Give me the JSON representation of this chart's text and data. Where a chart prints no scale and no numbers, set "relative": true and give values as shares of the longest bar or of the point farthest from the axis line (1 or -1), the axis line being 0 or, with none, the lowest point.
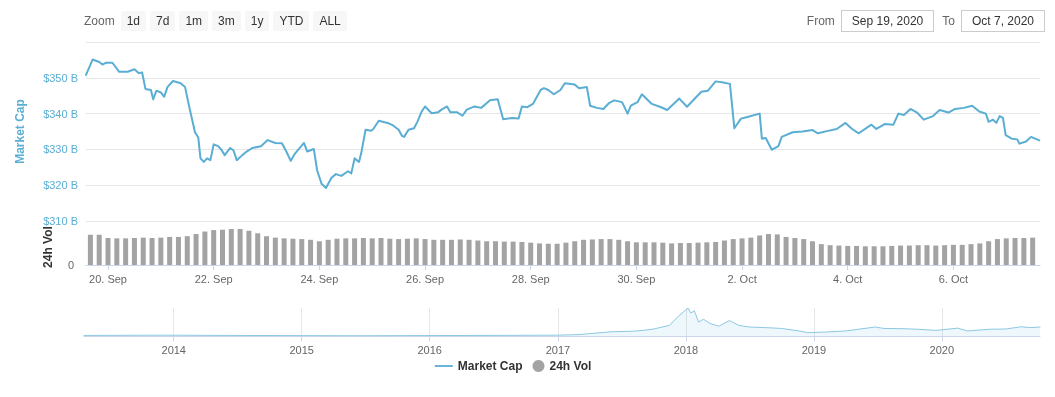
{
  "chart_data": [
    {
      "type": "line",
      "ylabel": "Market Cap",
      "annotations": [
        "Zoom",
        "1d",
        "7d",
        "1m",
        "3m",
        "1y",
        "YTD",
        "ALL",
        "From",
        "Sep 19, 2020",
        "To",
        "Oct 7, 2020"
      ],
      "x": [
        "2020-09-19T14:00",
        "2020-09-19T17:00",
        "2020-09-19T20:00",
        "2020-09-19T21:30",
        "2020-09-19T23:00",
        "2020-09-20T02:00",
        "2020-09-20T05:00",
        "2020-09-20T09:00",
        "2020-09-20T12:00",
        "2020-09-20T14:00",
        "2020-09-20T15:30",
        "2020-09-20T17:00",
        "2020-09-20T19:30",
        "2020-09-20T20:30",
        "2020-09-20T22:00",
        "2020-09-21T00:00",
        "2020-09-21T01:30",
        "2020-09-21T03:00",
        "2020-09-21T05:30",
        "2020-09-21T09:00",
        "2020-09-21T11:00",
        "2020-09-21T13:00",
        "2020-09-21T15:30",
        "2020-09-21T17:00",
        "2020-09-21T18:00",
        "2020-09-21T19:30",
        "2020-09-21T21:00",
        "2020-09-21T22:30",
        "2020-09-22T00:00",
        "2020-09-22T02:00",
        "2020-09-22T03:30",
        "2020-09-22T05:00",
        "2020-09-22T07:30",
        "2020-09-22T09:00",
        "2020-09-22T10:30",
        "2020-09-22T13:00",
        "2020-09-22T15:00",
        "2020-09-22T17:30",
        "2020-09-22T21:30",
        "2020-09-23T00:30",
        "2020-09-23T04:00",
        "2020-09-23T07:00",
        "2020-09-23T09:00",
        "2020-09-23T11:00",
        "2020-09-23T13:00",
        "2020-09-23T17:00",
        "2020-09-23T18:30",
        "2020-09-23T21:30",
        "2020-09-23T23:00",
        "2020-09-24T01:00",
        "2020-09-24T03:00",
        "2020-09-24T05:30",
        "2020-09-24T07:30",
        "2020-09-24T10:00",
        "2020-09-24T13:00",
        "2020-09-24T14:30",
        "2020-09-24T16:00",
        "2020-09-24T18:00",
        "2020-09-24T19:00",
        "2020-09-24T21:00",
        "2020-09-24T23:30",
        "2020-09-25T00:30",
        "2020-09-25T03:00",
        "2020-09-25T07:00",
        "2020-09-25T09:30",
        "2020-09-25T12:00",
        "2020-09-25T13:30",
        "2020-09-25T14:30",
        "2020-09-25T16:30",
        "2020-09-25T19:00",
        "2020-09-25T20:30",
        "2020-09-25T22:30",
        "2020-09-26T00:00",
        "2020-09-26T03:00",
        "2020-09-26T06:00",
        "2020-09-26T07:30",
        "2020-09-26T10:00",
        "2020-09-26T11:30",
        "2020-09-26T14:30",
        "2020-09-26T17:00",
        "2020-09-26T19:00",
        "2020-09-26T22:30",
        "2020-09-27T01:30",
        "2020-09-27T05:30",
        "2020-09-27T09:00",
        "2020-09-27T11:30",
        "2020-09-27T15:30",
        "2020-09-27T18:30",
        "2020-09-27T20:00",
        "2020-09-27T22:30",
        "2020-09-28T01:00",
        "2020-09-28T04:30",
        "2020-09-28T06:00",
        "2020-09-28T08:00",
        "2020-09-28T10:30",
        "2020-09-28T13:30",
        "2020-09-28T15:30",
        "2020-09-28T20:00",
        "2020-09-28T22:00",
        "2020-09-29T01:30",
        "2020-09-29T03:00",
        "2020-09-29T06:00",
        "2020-09-29T09:00",
        "2020-09-29T11:30",
        "2020-09-29T14:00",
        "2020-09-29T17:30",
        "2020-09-29T20:00",
        "2020-09-29T21:30",
        "2020-09-30T00:30",
        "2020-09-30T02:30",
        "2020-09-30T07:00",
        "2020-09-30T11:30",
        "2020-09-30T14:00",
        "2020-09-30T19:30",
        "2020-09-30T23:00",
        "2020-10-01T05:30",
        "2020-10-01T08:30",
        "2020-10-01T12:00",
        "2020-10-01T15:30",
        "2020-10-01T18:30",
        "2020-10-01T20:30",
        "2020-10-01T23:30",
        "2020-10-02T02:00",
        "2020-10-02T08:00",
        "2020-10-02T09:00",
        "2020-10-02T10:45",
        "2020-10-02T13:30",
        "2020-10-02T16:30",
        "2020-10-02T18:00",
        "2020-10-02T23:00",
        "2020-10-03T03:30",
        "2020-10-03T08:00",
        "2020-10-03T10:30",
        "2020-10-03T14:30",
        "2020-10-03T19:00",
        "2020-10-03T23:00",
        "2020-10-04T02:00",
        "2020-10-04T05:00",
        "2020-10-04T10:45",
        "2020-10-04T13:00",
        "2020-10-04T17:00",
        "2020-10-04T20:45",
        "2020-10-04T23:00",
        "2020-10-05T01:30",
        "2020-10-05T04:30",
        "2020-10-05T07:30",
        "2020-10-05T10:30",
        "2020-10-05T14:45",
        "2020-10-05T17:45",
        "2020-10-05T21:45",
        "2020-10-06T00:45",
        "2020-10-06T04:45",
        "2020-10-06T08:30",
        "2020-10-06T11:45",
        "2020-10-06T14:45",
        "2020-10-06T16:00",
        "2020-10-06T18:00",
        "2020-10-06T19:30",
        "2020-10-06T21:00",
        "2020-10-06T22:30",
        "2020-10-06T23:45",
        "2020-10-07T02:30",
        "2020-10-07T05:00",
        "2020-10-07T06:00",
        "2020-10-07T09:00",
        "2020-10-07T11:15",
        "2020-10-07T15:00"
      ],
      "series": [
        {
          "name": "Market Cap",
          "color": "#5aaed4",
          "values": [
            350.8,
            355.1,
            354.4,
            353.7,
            354.2,
            354.2,
            351.7,
            351.7,
            352.4,
            351.3,
            351.5,
            346.9,
            346.6,
            344.0,
            346.4,
            345.9,
            344.7,
            347.4,
            349.1,
            348.5,
            347.4,
            341.6,
            334.8,
            333.3,
            327.5,
            326.5,
            327.5,
            327.0,
            331.4,
            330.9,
            329.9,
            328.4,
            330.4,
            329.7,
            327.0,
            328.4,
            329.4,
            330.4,
            330.9,
            332.6,
            331.8,
            331.7,
            329.4,
            326.8,
            328.9,
            331.8,
            329.4,
            330.1,
            324.1,
            320.4,
            319.2,
            322.1,
            323.1,
            322.6,
            323.9,
            323.3,
            327.5,
            326.5,
            328.9,
            335.5,
            335.2,
            335.7,
            338.0,
            337.4,
            336.7,
            335.5,
            333.8,
            333.5,
            335.5,
            335.9,
            337.7,
            340.6,
            342.0,
            340.1,
            340.4,
            341.1,
            342.0,
            340.4,
            340.4,
            339.4,
            341.1,
            342.0,
            341.6,
            343.7,
            344.0,
            338.4,
            338.8,
            338.6,
            342.0,
            341.8,
            342.7,
            346.6,
            347.1,
            346.6,
            345.4,
            346.6,
            348.5,
            348.1,
            347.1,
            347.4,
            342.2,
            341.6,
            341.3,
            342.9,
            343.7,
            343.2,
            340.0,
            342.2,
            343.2,
            345.4,
            342.7,
            341.7,
            341.0,
            344.2,
            341.9,
            346.1,
            346.4,
            349.0,
            348.7,
            348.3,
            335.9,
            338.6,
            339.0,
            340.0,
            333.0,
            333.2,
            329.9,
            330.9,
            333.5,
            334.8,
            335.0,
            335.4,
            334.5,
            335.1,
            335.7,
            337.4,
            335.7,
            334.5,
            336.9,
            335.7,
            337.1,
            336.9,
            340.0,
            339.6,
            341.3,
            340.3,
            338.3,
            339.3,
            341.0,
            340.3,
            341.3,
            341.6,
            342.2,
            340.6,
            340.0,
            337.7,
            338.3,
            337.4,
            339.3,
            338.8,
            334.0,
            333.0,
            332.8,
            331.6,
            332.2,
            333.5,
            332.5
          ]
        }
      ],
      "xlim": [
        "2020-09-19T14:00",
        "2020-10-07T15:20"
      ],
      "ylim": [
        310,
        360
      ],
      "yticks": [
        {
          "value": 310,
          "label": "$310 B"
        },
        {
          "value": 320,
          "label": "$320 B"
        },
        {
          "value": 330,
          "label": "$330 B"
        },
        {
          "value": 340,
          "label": "$340 B"
        },
        {
          "value": 350,
          "label": "$350 B"
        },
        {
          "value": 360,
          "label": null
        }
      ],
      "grid": "y",
      "legend": "bottom",
      "tick_labels": "y",
      "marker": "none",
      "line_style": "solid"
    },
    {
      "type": "bar",
      "relative": true,
      "ylabel": "24h Vol",
      "annotations": [
        "0"
      ],
      "x": [
        "2020-09-19T16:00",
        "2020-09-19T20:00",
        "2020-09-20T00:00",
        "2020-09-20T04:00",
        "2020-09-20T08:00",
        "2020-09-20T12:00",
        "2020-09-20T16:00",
        "2020-09-20T20:00",
        "2020-09-21T00:00",
        "2020-09-21T04:00",
        "2020-09-21T08:00",
        "2020-09-21T12:00",
        "2020-09-21T16:00",
        "2020-09-21T20:00",
        "2020-09-22T00:00",
        "2020-09-22T04:00",
        "2020-09-22T08:00",
        "2020-09-22T12:00",
        "2020-09-22T16:00",
        "2020-09-22T20:00",
        "2020-09-23T00:00",
        "2020-09-23T04:00",
        "2020-09-23T08:00",
        "2020-09-23T12:00",
        "2020-09-23T16:00",
        "2020-09-23T20:00",
        "2020-09-24T00:00",
        "2020-09-24T04:00",
        "2020-09-24T08:00",
        "2020-09-24T12:00",
        "2020-09-24T16:00",
        "2020-09-24T20:00",
        "2020-09-25T00:00",
        "2020-09-25T04:00",
        "2020-09-25T08:00",
        "2020-09-25T12:00",
        "2020-09-25T16:00",
        "2020-09-25T20:00",
        "2020-09-26T00:00",
        "2020-09-26T04:00",
        "2020-09-26T08:00",
        "2020-09-26T12:00",
        "2020-09-26T16:00",
        "2020-09-26T20:00",
        "2020-09-27T00:00",
        "2020-09-27T04:00",
        "2020-09-27T08:00",
        "2020-09-27T12:00",
        "2020-09-27T16:00",
        "2020-09-27T20:00",
        "2020-09-28T00:00",
        "2020-09-28T04:00",
        "2020-09-28T08:00",
        "2020-09-28T12:00",
        "2020-09-28T16:00",
        "2020-09-28T20:00",
        "2020-09-29T00:00",
        "2020-09-29T04:00",
        "2020-09-29T08:00",
        "2020-09-29T12:00",
        "2020-09-29T16:00",
        "2020-09-29T20:00",
        "2020-09-30T00:00",
        "2020-09-30T04:00",
        "2020-09-30T08:00",
        "2020-09-30T12:00",
        "2020-09-30T16:00",
        "2020-09-30T20:00",
        "2020-10-01T00:00",
        "2020-10-01T04:00",
        "2020-10-01T08:00",
        "2020-10-01T12:00",
        "2020-10-01T16:00",
        "2020-10-01T20:00",
        "2020-10-02T00:00",
        "2020-10-02T04:00",
        "2020-10-02T08:00",
        "2020-10-02T12:00",
        "2020-10-02T16:00",
        "2020-10-02T20:00",
        "2020-10-03T00:00",
        "2020-10-03T04:00",
        "2020-10-03T08:00",
        "2020-10-03T12:00",
        "2020-10-03T16:00",
        "2020-10-03T20:00",
        "2020-10-04T00:00",
        "2020-10-04T04:00",
        "2020-10-04T08:00",
        "2020-10-04T12:00",
        "2020-10-04T16:00",
        "2020-10-04T20:00",
        "2020-10-05T00:00",
        "2020-10-05T04:00",
        "2020-10-05T08:00",
        "2020-10-05T12:00",
        "2020-10-05T16:00",
        "2020-10-05T20:00",
        "2020-10-06T00:00",
        "2020-10-06T04:00",
        "2020-10-06T08:00",
        "2020-10-06T12:00",
        "2020-10-06T16:00",
        "2020-10-06T20:00",
        "2020-10-07T00:00",
        "2020-10-07T04:00",
        "2020-10-07T08:00",
        "2020-10-07T12:00"
      ],
      "series": [
        {
          "name": "24h Vol",
          "color": "#a3a3a3",
          "values": [
            0.84,
            0.84,
            0.75,
            0.74,
            0.74,
            0.75,
            0.76,
            0.75,
            0.76,
            0.78,
            0.78,
            0.8,
            0.86,
            0.93,
            0.97,
            0.98,
            1.0,
            1.0,
            0.95,
            0.88,
            0.8,
            0.76,
            0.74,
            0.73,
            0.72,
            0.7,
            0.66,
            0.7,
            0.73,
            0.74,
            0.74,
            0.75,
            0.74,
            0.75,
            0.73,
            0.72,
            0.73,
            0.74,
            0.72,
            0.7,
            0.7,
            0.7,
            0.71,
            0.7,
            0.68,
            0.66,
            0.66,
            0.65,
            0.65,
            0.64,
            0.62,
            0.6,
            0.59,
            0.59,
            0.62,
            0.66,
            0.7,
            0.71,
            0.72,
            0.72,
            0.7,
            0.66,
            0.63,
            0.63,
            0.63,
            0.62,
            0.6,
            0.61,
            0.61,
            0.62,
            0.63,
            0.64,
            0.68,
            0.72,
            0.74,
            0.76,
            0.82,
            0.86,
            0.85,
            0.78,
            0.75,
            0.72,
            0.66,
            0.58,
            0.55,
            0.54,
            0.53,
            0.53,
            0.52,
            0.52,
            0.52,
            0.53,
            0.54,
            0.54,
            0.55,
            0.55,
            0.54,
            0.55,
            0.56,
            0.56,
            0.58,
            0.6,
            0.66,
            0.72,
            0.74,
            0.75,
            0.75,
            0.76
          ]
        }
      ],
      "xlim": [
        "2020-09-19T14:00",
        "2020-10-07T15:20"
      ],
      "xticks": [
        {
          "value": "2020-09-20",
          "label": "20. Sep"
        },
        {
          "value": "2020-09-22",
          "label": "22. Sep"
        },
        {
          "value": "2020-09-24",
          "label": "24. Sep"
        },
        {
          "value": "2020-09-26",
          "label": "26. Sep"
        },
        {
          "value": "2020-09-28",
          "label": "28. Sep"
        },
        {
          "value": "2020-09-30",
          "label": "30. Sep"
        },
        {
          "value": "2020-10-02",
          "label": "2. Oct"
        },
        {
          "value": "2020-10-04",
          "label": "4. Oct"
        },
        {
          "value": "2020-10-06",
          "label": "6. Oct"
        }
      ],
      "legend": "bottom",
      "tick_labels": "x"
    },
    {
      "type": "area",
      "relative": true,
      "x": [
        "2013-04-20",
        "2013-12-01",
        "2014-06",
        "2015-06",
        "2016-06",
        "2017-01",
        "2017-03",
        "2017-06",
        "2017-08",
        "2017-09",
        "2017-10",
        "2017-11-15",
        "2017-12-10",
        "2018-01-07",
        "2018-01-15",
        "2018-01-25",
        "2018-02-06",
        "2018-02-20",
        "2018-03-10",
        "2018-04-05",
        "2018-05-05",
        "2018-06-01",
        "2018-07-01",
        "2018-08-15",
        "2018-10-01",
        "2018-11-20",
        "2018-12-15",
        "2019-02-01",
        "2019-04-01",
        "2019-06-25",
        "2019-07-20",
        "2019-09-15",
        "2019-10-25",
        "2019-12-15",
        "2020-02-15",
        "2020-03-15",
        "2020-05-15",
        "2020-07-01",
        "2020-08-15",
        "2020-09-10",
        "2020-10-07"
      ],
      "series": [
        {
          "color": "#8cc8e2",
          "values": [
            0.02,
            0.03,
            0.02,
            0.01,
            0.02,
            0.03,
            0.05,
            0.15,
            0.17,
            0.2,
            0.25,
            0.38,
            0.7,
            1.0,
            0.82,
            0.9,
            0.5,
            0.6,
            0.45,
            0.35,
            0.55,
            0.38,
            0.32,
            0.3,
            0.27,
            0.18,
            0.12,
            0.14,
            0.18,
            0.32,
            0.27,
            0.26,
            0.24,
            0.2,
            0.28,
            0.18,
            0.24,
            0.25,
            0.33,
            0.3,
            0.32
          ]
        }
      ],
      "xlim": [
        "2013-04-20",
        "2020-10-07"
      ],
      "xticks": [
        "2014",
        "2015",
        "2016",
        "2017",
        "2018",
        "2019",
        "2020"
      ],
      "tick_labels": "x",
      "grid": "x",
      "marker": "none"
    }
  ]
}
